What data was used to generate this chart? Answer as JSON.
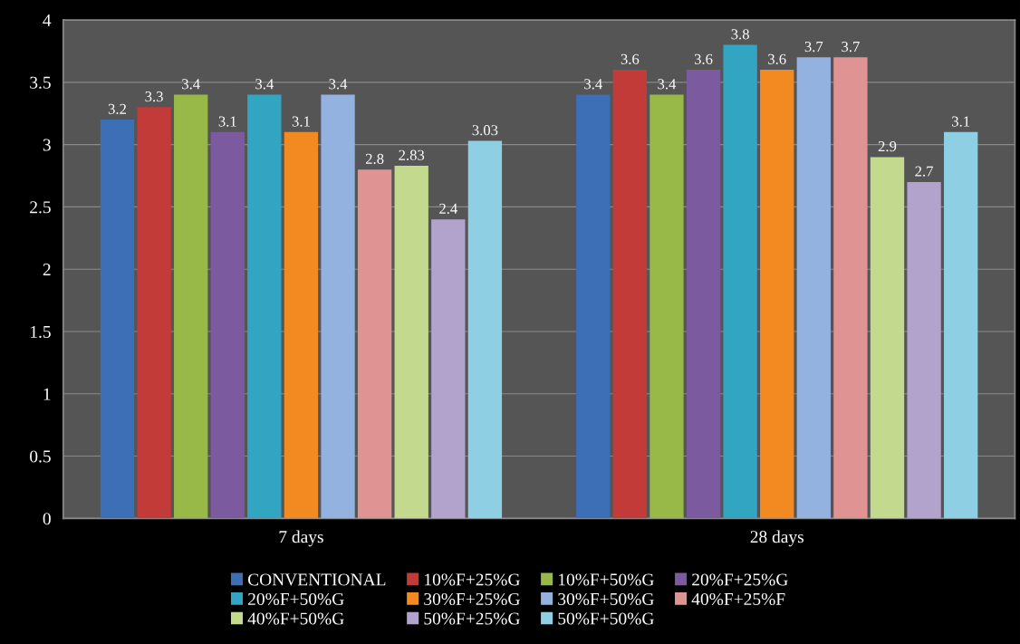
{
  "chart_data": {
    "type": "bar",
    "categories": [
      "7 days",
      "28 days"
    ],
    "series": [
      {
        "name": "CONVENTIONAL",
        "color": "#3d6fb6",
        "values": [
          3.2,
          3.4
        ]
      },
      {
        "name": "10%F+25%G",
        "color": "#c23b38",
        "values": [
          3.3,
          3.6
        ]
      },
      {
        "name": "10%F+50%G",
        "color": "#98b948",
        "values": [
          3.4,
          3.4
        ]
      },
      {
        "name": "20%F+25%G",
        "color": "#7b5aa0",
        "values": [
          3.1,
          3.6
        ]
      },
      {
        "name": "20%F+50%G",
        "color": "#31a5c2",
        "values": [
          3.4,
          3.8
        ]
      },
      {
        "name": "30%F+25%G",
        "color": "#f38a21",
        "values": [
          3.1,
          3.6
        ]
      },
      {
        "name": "30%F+50%G",
        "color": "#94b2df",
        "values": [
          3.4,
          3.7
        ]
      },
      {
        "name": "40%F+25%F",
        "color": "#df9493",
        "values": [
          2.8,
          3.7
        ]
      },
      {
        "name": "40%F+50%G",
        "color": "#c3da8e",
        "values": [
          2.83,
          2.9
        ]
      },
      {
        "name": "50%F+25%G",
        "color": "#b2a3cd",
        "values": [
          2.4,
          2.7
        ]
      },
      {
        "name": "50%F+50%G",
        "color": "#8ecfe4",
        "values": [
          3.03,
          3.1
        ]
      }
    ],
    "ylim": [
      0,
      4
    ],
    "yticks": [
      0,
      0.5,
      1,
      1.5,
      2,
      2.5,
      3,
      3.5,
      4
    ],
    "grid": "y",
    "legend": "bottom",
    "data_labels": true
  }
}
